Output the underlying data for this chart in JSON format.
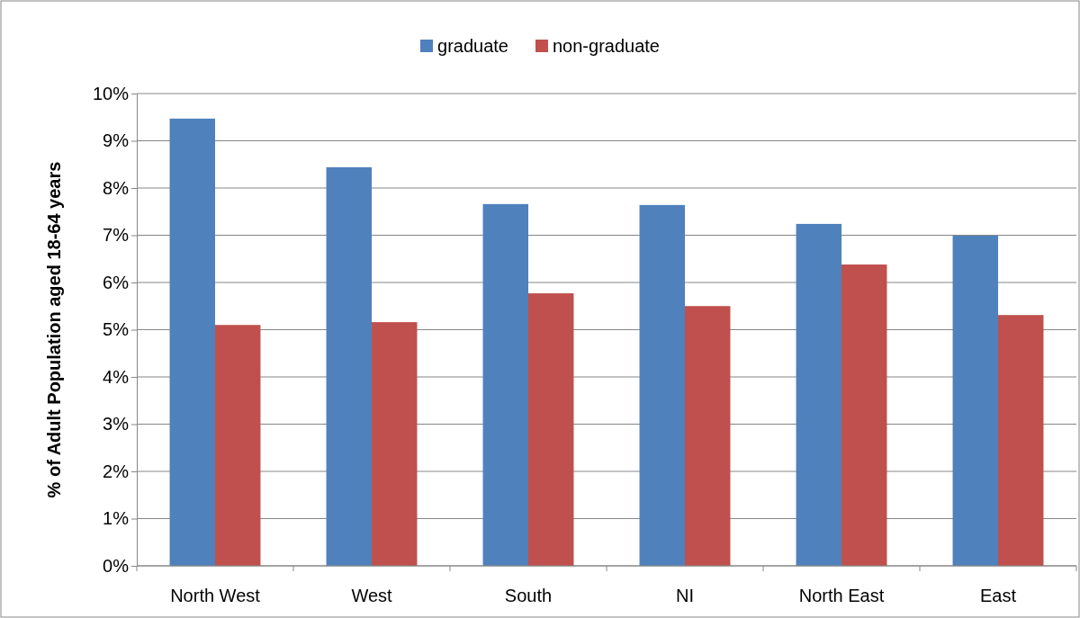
{
  "chart_data": {
    "type": "bar",
    "ylabel": "% of Adult Population aged 18-64 years",
    "categories": [
      "North West",
      "West",
      "South",
      "NI",
      "North East",
      "East"
    ],
    "series": [
      {
        "name": "graduate",
        "color": "#4f81bd",
        "values": [
          9.47,
          8.44,
          7.66,
          7.64,
          7.24,
          6.99
        ]
      },
      {
        "name": "non-graduate",
        "color": "#c0504d",
        "values": [
          5.1,
          5.16,
          5.77,
          5.5,
          6.38,
          5.31
        ]
      }
    ],
    "ylim": [
      0,
      10
    ],
    "yticks": [
      {
        "value": 0,
        "label": "0%"
      },
      {
        "value": 1,
        "label": "1%"
      },
      {
        "value": 2,
        "label": "2%"
      },
      {
        "value": 3,
        "label": "3%"
      },
      {
        "value": 4,
        "label": "4%"
      },
      {
        "value": 5,
        "label": "5%"
      },
      {
        "value": 6,
        "label": "6%"
      },
      {
        "value": 7,
        "label": "7%"
      },
      {
        "value": 8,
        "label": "8%"
      },
      {
        "value": 9,
        "label": "9%"
      },
      {
        "value": 10,
        "label": "10%"
      }
    ],
    "grid": "y",
    "legend": "top"
  }
}
